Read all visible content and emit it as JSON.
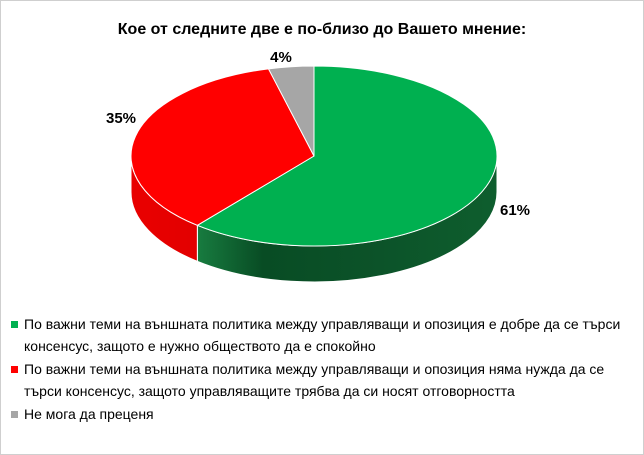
{
  "frame": {
    "background_color": "#FFFFFF",
    "border_color": "#CFCFCF"
  },
  "chart_data": {
    "type": "pie",
    "effect": "3d",
    "title": "Кое от следните две е по-близо до Вашето мнение:",
    "direction": "clockwise",
    "start_angle_deg": 0,
    "legend_position": "bottom-left",
    "text_color": "#000000",
    "series": [
      {
        "label": "По важни теми на външната политика между управляващи и опозиция е добре да се търси консенсус, защото е нужно обществото да е спокойно",
        "value": 61,
        "pct_label": "61%",
        "color": "#00B050",
        "side_colors": [
          "#24A155",
          "#084C24",
          "#0C5329",
          "#0E5E2E"
        ]
      },
      {
        "label": "По важни теми на външната политика между управляващи и опозиция няма нужда да се търси консенсус, защото управляващите трябва да си носят отговорността",
        "value": 35,
        "pct_label": "35%",
        "color": "#FF0000",
        "side_colors": [
          "#E80000",
          "#C00000"
        ]
      },
      {
        "label": "Не мога да преценя",
        "value": 4,
        "pct_label": "4%",
        "color": "#A6A6A6",
        "side_colors": []
      }
    ]
  }
}
